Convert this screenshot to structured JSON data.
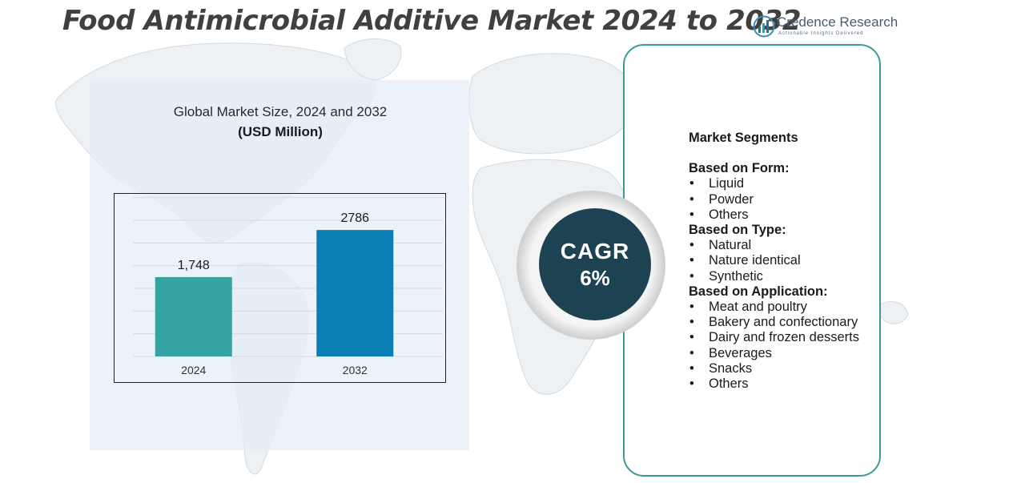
{
  "title": "Food Antimicrobial Additive Market 2024 to 2032",
  "brand": {
    "name": "Credence Research",
    "tagline": "Actionable Insights Delivered"
  },
  "chart_heading": "Global Market Size,  2024 and 2032",
  "chart_unit": "(USD Million)",
  "chart_data": {
    "type": "bar",
    "categories": [
      "2024",
      "2032"
    ],
    "values": [
      1748,
      2786
    ],
    "value_labels": [
      "1,748",
      "2786"
    ],
    "colors": [
      "#35a3a1",
      "#0a7fb3"
    ],
    "ylim": [
      0,
      3600
    ],
    "grid": true,
    "legend": "none"
  },
  "cagr": {
    "label": "CAGR",
    "value": "6%"
  },
  "segments": {
    "title": "Market Segments",
    "groups": [
      {
        "label": "Based on Form:",
        "items": [
          "Liquid",
          "Powder",
          "Others"
        ]
      },
      {
        "label": "Based on Type:",
        "items": [
          "Natural",
          "Nature identical",
          "Synthetic"
        ]
      },
      {
        "label": "Based on Application:",
        "items": [
          "Meat and poultry",
          "Bakery and confectionary",
          "Dairy and frozen desserts",
          "Beverages",
          "Snacks",
          "Others"
        ]
      }
    ]
  }
}
